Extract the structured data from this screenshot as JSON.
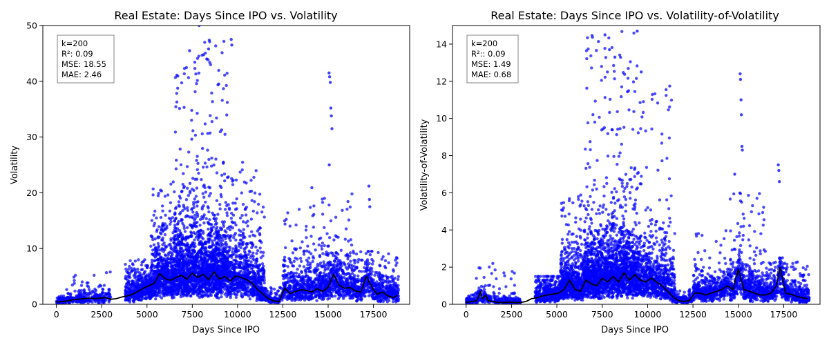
{
  "chart_data": [
    {
      "type": "scatter",
      "title": "Real Estate: Days Since IPO vs. Volatility",
      "xlabel": "Days Since IPO",
      "ylabel": "Volatility",
      "xlim": [
        -750,
        19500
      ],
      "ylim": [
        0,
        50
      ],
      "xticks": [
        0,
        2500,
        5000,
        7500,
        10000,
        12500,
        15000,
        17500
      ],
      "yticks": [
        0,
        10,
        20,
        30,
        40,
        50
      ],
      "grid": false,
      "legend": "none",
      "point_color": "#0000ff",
      "line_color": "#000000",
      "stats_box": {
        "position": "top-left",
        "lines": [
          "k=200",
          "R²: 0.09",
          "MSE: 18.55",
          "MAE: 2.46"
        ]
      },
      "trend": {
        "x": [
          0,
          300,
          600,
          900,
          1200,
          1500,
          1800,
          2100,
          2400,
          2700,
          3000,
          3300,
          3600,
          3900,
          4200,
          4500,
          4800,
          5100,
          5400,
          5700,
          6000,
          6300,
          6600,
          6900,
          7200,
          7500,
          7800,
          8100,
          8400,
          8700,
          9000,
          9300,
          9600,
          9900,
          10200,
          10500,
          10800,
          11100,
          11400,
          11700,
          12000,
          12300,
          12600,
          12900,
          13200,
          13500,
          13800,
          14100,
          14400,
          14700,
          15000,
          15300,
          15600,
          15900,
          16200,
          16500,
          16800,
          17100,
          17400,
          17700,
          18000,
          18300,
          18600,
          18800
        ],
        "y": [
          0.4,
          0.5,
          0.6,
          0.8,
          0.9,
          1.0,
          1.1,
          1.0,
          1.1,
          1.2,
          0.9,
          1.0,
          1.3,
          1.5,
          1.8,
          2.3,
          2.9,
          3.3,
          3.8,
          5.5,
          4.6,
          4.3,
          4.8,
          5.2,
          4.5,
          5.6,
          4.8,
          5.4,
          4.4,
          5.8,
          4.5,
          5.0,
          4.2,
          5.1,
          4.8,
          4.4,
          3.8,
          2.7,
          1.8,
          1.0,
          0.6,
          0.5,
          2.9,
          1.9,
          2.3,
          2.6,
          2.5,
          2.2,
          2.8,
          2.3,
          3.1,
          5.4,
          3.4,
          2.9,
          3.0,
          2.4,
          2.2,
          5.0,
          3.2,
          1.8,
          2.2,
          1.5,
          1.2,
          1.6
        ]
      },
      "point_clusters": [
        {
          "x_range": [
            0,
            500
          ],
          "count": 80,
          "spread": 0.5,
          "max": 1.5
        },
        {
          "x_range": [
            500,
            3000
          ],
          "count": 280,
          "spread": 0.9,
          "max": 6.0
        },
        {
          "x_range": [
            3800,
            5200
          ],
          "count": 420,
          "spread": 2.0,
          "max": 8.0
        },
        {
          "x_range": [
            5200,
            6500
          ],
          "count": 650,
          "spread": 4.0,
          "max": 22.0
        },
        {
          "x_range": [
            6500,
            8000
          ],
          "count": 950,
          "spread": 6.0,
          "max": 45.0
        },
        {
          "x_range": [
            8000,
            9500
          ],
          "count": 950,
          "spread": 6.0,
          "max": 47.5
        },
        {
          "x_range": [
            9500,
            11500
          ],
          "count": 750,
          "spread": 4.5,
          "max": 25.5
        },
        {
          "x_range": [
            11500,
            12500
          ],
          "count": 120,
          "spread": 0.8,
          "max": 3.0
        },
        {
          "x_range": [
            12500,
            14500
          ],
          "count": 500,
          "spread": 2.8,
          "max": 18.0
        },
        {
          "x_range": [
            14500,
            16500
          ],
          "count": 550,
          "spread": 3.5,
          "max": 20.0
        },
        {
          "x_range": [
            16500,
            18900
          ],
          "count": 550,
          "spread": 2.2,
          "max": 9.5
        }
      ],
      "outliers": {
        "x": [
          7880,
          9650,
          9680,
          15050,
          15080,
          15120,
          15150,
          15180,
          15210,
          15060,
          17250,
          17280,
          17300,
          14100,
          9220,
          9210,
          8400,
          8300,
          7350
        ],
        "y": [
          50,
          47.5,
          46.5,
          41.5,
          40.8,
          39.8,
          35.2,
          33.8,
          31.5,
          25.0,
          21.2,
          18.8,
          17.5,
          20.9,
          25.5,
          25.3,
          45.8,
          44.0,
          45.5
        ]
      }
    },
    {
      "type": "scatter",
      "title": "Real Estate: Days Since IPO vs. Volatility-of-Volatility",
      "xlabel": "Days Since IPO",
      "ylabel": "Volatility-of-Volatility",
      "xlim": [
        -750,
        19500
      ],
      "ylim": [
        0,
        15
      ],
      "xticks": [
        0,
        2500,
        5000,
        7500,
        10000,
        12500,
        15000,
        17500
      ],
      "yticks": [
        0,
        2,
        4,
        6,
        8,
        10,
        12,
        14
      ],
      "grid": false,
      "legend": "none",
      "point_color": "#0000ff",
      "line_color": "#000000",
      "stats_box": {
        "position": "top-left",
        "lines": [
          "k=200",
          "R²:: 0.09",
          "MSE: 1.49",
          "MAE: 0.68"
        ]
      },
      "trend": {
        "x": [
          0,
          300,
          600,
          800,
          900,
          1100,
          1200,
          1500,
          1800,
          2100,
          2400,
          2700,
          3000,
          3300,
          3600,
          3900,
          4200,
          4500,
          4800,
          5100,
          5400,
          5700,
          6000,
          6300,
          6600,
          6900,
          7200,
          7500,
          7800,
          8100,
          8400,
          8700,
          9000,
          9300,
          9600,
          9900,
          10200,
          10500,
          10800,
          11100,
          11400,
          11700,
          12000,
          12300,
          12600,
          12900,
          13200,
          13500,
          13800,
          14100,
          14400,
          14700,
          15000,
          15300,
          15600,
          15900,
          16200,
          16500,
          16800,
          17100,
          17300,
          17600,
          18000,
          18300,
          18800
        ],
        "y": [
          0.1,
          0.15,
          0.2,
          0.7,
          0.3,
          0.5,
          0.2,
          0.15,
          0.1,
          0.1,
          0.12,
          0.1,
          0.1,
          0.15,
          0.3,
          0.35,
          0.45,
          0.5,
          0.55,
          0.6,
          0.8,
          1.3,
          0.8,
          0.7,
          1.3,
          1.1,
          1.0,
          1.4,
          1.2,
          1.5,
          1.2,
          1.7,
          1.3,
          1.6,
          1.3,
          1.2,
          1.4,
          1.2,
          1.0,
          0.7,
          0.4,
          0.2,
          0.15,
          0.2,
          0.6,
          0.6,
          0.5,
          0.6,
          0.7,
          0.8,
          1.0,
          0.8,
          1.9,
          0.8,
          0.7,
          0.6,
          0.5,
          0.5,
          0.6,
          1.0,
          2.0,
          0.6,
          0.5,
          0.4,
          0.3
        ]
      },
      "point_clusters": [
        {
          "x_range": [
            0,
            500
          ],
          "count": 80,
          "spread": 0.12,
          "max": 0.5
        },
        {
          "x_range": [
            500,
            3000
          ],
          "count": 280,
          "spread": 0.2,
          "max": 2.2
        },
        {
          "x_range": [
            3800,
            5200
          ],
          "count": 420,
          "spread": 0.5,
          "max": 1.5
        },
        {
          "x_range": [
            5200,
            6500
          ],
          "count": 650,
          "spread": 1.0,
          "max": 6.0
        },
        {
          "x_range": [
            6500,
            8000
          ],
          "count": 950,
          "spread": 1.6,
          "max": 14.5
        },
        {
          "x_range": [
            8000,
            9500
          ],
          "count": 950,
          "spread": 1.6,
          "max": 14.7
        },
        {
          "x_range": [
            9500,
            11500
          ],
          "count": 750,
          "spread": 1.2,
          "max": 12.0
        },
        {
          "x_range": [
            11500,
            12500
          ],
          "count": 120,
          "spread": 0.2,
          "max": 0.8
        },
        {
          "x_range": [
            12500,
            14500
          ],
          "count": 500,
          "spread": 0.6,
          "max": 4.0
        },
        {
          "x_range": [
            14500,
            16500
          ],
          "count": 550,
          "spread": 0.8,
          "max": 6.0
        },
        {
          "x_range": [
            16500,
            18900
          ],
          "count": 550,
          "spread": 0.5,
          "max": 2.5
        }
      ],
      "outliers": {
        "x": [
          7650,
          9430,
          9650,
          15100,
          15120,
          15150,
          15170,
          15200,
          15220,
          17200,
          17230,
          17260,
          7900,
          8200,
          14800
        ],
        "y": [
          14.5,
          14.7,
          12.5,
          12.4,
          12.1,
          11.0,
          10.2,
          8.5,
          8.3,
          7.5,
          7.2,
          6.6,
          13.7,
          13.3,
          7.0
        ]
      }
    }
  ]
}
